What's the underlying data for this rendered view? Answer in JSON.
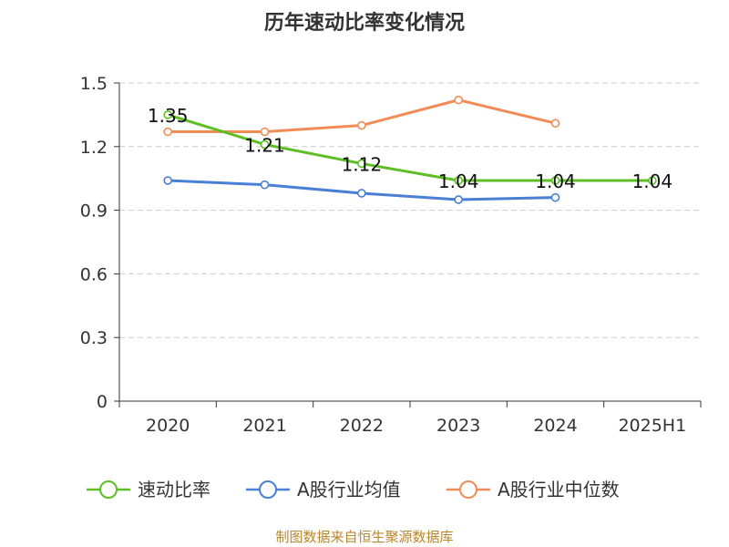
{
  "chart_data": {
    "type": "line",
    "title": "历年速动比率变化情况",
    "categories": [
      "2020",
      "2021",
      "2022",
      "2023",
      "2024",
      "2025H1"
    ],
    "ylim": [
      0,
      1.5
    ],
    "yticks": [
      "0",
      "0.3",
      "0.6",
      "0.9",
      "1.2",
      "1.5"
    ],
    "ytick_values": [
      0,
      0.3,
      0.6,
      0.9,
      1.2,
      1.5
    ],
    "grid": true,
    "legend_position": "bottom",
    "series": [
      {
        "name": "速动比率",
        "color": "#5dbf24",
        "values": [
          1.35,
          1.21,
          1.12,
          1.04,
          1.04,
          1.04
        ],
        "labels": [
          "1.35",
          "1.21",
          "1.12",
          "1.04",
          "1.04",
          "1.04"
        ]
      },
      {
        "name": "A股行业均值",
        "color": "#4a7fd6",
        "values": [
          1.04,
          1.02,
          0.98,
          0.95,
          0.96,
          null
        ]
      },
      {
        "name": "A股行业中位数",
        "color": "#f28c57",
        "values": [
          1.27,
          1.27,
          1.3,
          1.42,
          1.31,
          null
        ]
      }
    ],
    "source": "制图数据来自恒生聚源数据库"
  }
}
